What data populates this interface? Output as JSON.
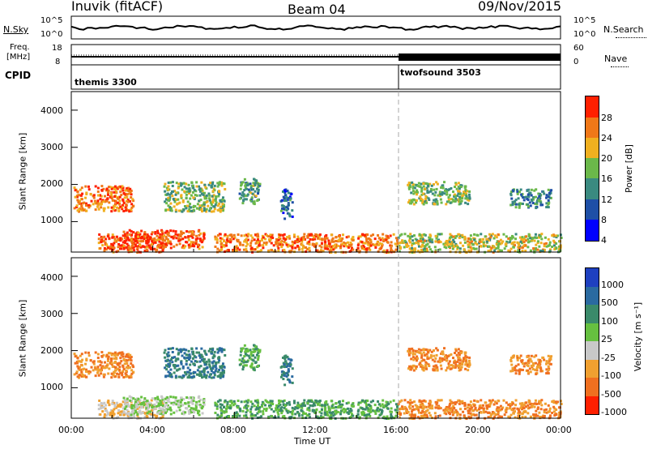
{
  "header": {
    "station": "Inuvik (fitACF)",
    "beam": "Beam 04",
    "date": "09/Nov/2015"
  },
  "noise": {
    "left_label": "N.Sky",
    "right_label": "N.Search",
    "left_ticks": [
      "10^5",
      "10^0"
    ],
    "right_ticks": [
      "10^5",
      "10^0"
    ]
  },
  "freq": {
    "left_label_1": "Freq.",
    "left_label_2": "[MHz]",
    "right_label": "Nave",
    "left_ticks": [
      "18",
      "8"
    ],
    "right_ticks": [
      "60",
      "0"
    ]
  },
  "cpid": {
    "label": "CPID",
    "segments": [
      {
        "name": "themis 3300",
        "start_hour": 0
      },
      {
        "name": "twofsound 3503",
        "start_hour": 16
      }
    ]
  },
  "power_panel": {
    "ylabel": "Slant Range [km]",
    "yticks": [
      "1000",
      "2000",
      "3000",
      "4000"
    ],
    "colorbar_label": "Power [dB]",
    "colorbar_ticks": [
      "4",
      "8",
      "12",
      "16",
      "20",
      "24",
      "28"
    ],
    "colors": [
      "#0000ff",
      "#1e4fa6",
      "#3a8a80",
      "#6bb84a",
      "#f0b020",
      "#f07818",
      "#ff2000"
    ]
  },
  "velocity_panel": {
    "ylabel": "Slant Range [km]",
    "yticks": [
      "1000",
      "2000",
      "3000",
      "4000"
    ],
    "colorbar_label": "Velocity [m s⁻¹]",
    "colorbar_ticks": [
      "1000",
      "500",
      "100",
      "25",
      "-25",
      "-100",
      "-500",
      "-1000"
    ],
    "colors": [
      "#1e40c0",
      "#2a6aa0",
      "#3a8a6a",
      "#66c040",
      "#c8c8c8",
      "#f0a030",
      "#f07020",
      "#ff2000"
    ]
  },
  "xaxis": {
    "label": "Time UT",
    "ticks": [
      "00:00",
      "04:00",
      "08:00",
      "12:00",
      "16:00",
      "20:00",
      "00:00"
    ]
  },
  "chart_data": {
    "type": "heatmap",
    "x_range_hours": [
      0,
      24
    ],
    "y_range_km": [
      180,
      4500
    ],
    "scatter_regions": [
      {
        "t0": 0.1,
        "t1": 3.0,
        "r0": 1300,
        "r1": 2000,
        "power": 26,
        "velocity": -100
      },
      {
        "t0": 1.3,
        "t1": 4.5,
        "r0": 200,
        "r1": 700,
        "power": 28,
        "velocity": -25
      },
      {
        "t0": 2.5,
        "t1": 6.5,
        "r0": 300,
        "r1": 800,
        "power": 28,
        "velocity": 25
      },
      {
        "t0": 4.5,
        "t1": 7.5,
        "r0": 1300,
        "r1": 2100,
        "power": 18,
        "velocity": 500
      },
      {
        "t0": 7.0,
        "t1": 16.0,
        "r0": 200,
        "r1": 700,
        "power": 26,
        "velocity": 100
      },
      {
        "t0": 8.2,
        "t1": 9.2,
        "r0": 1500,
        "r1": 2200,
        "power": 16,
        "velocity": 100
      },
      {
        "t0": 10.2,
        "t1": 10.8,
        "r0": 1100,
        "r1": 1900,
        "power": 12,
        "velocity": 500
      },
      {
        "t0": 16.0,
        "t1": 24.0,
        "r0": 200,
        "r1": 700,
        "power": 20,
        "velocity": -100
      },
      {
        "t0": 16.4,
        "t1": 19.5,
        "r0": 1500,
        "r1": 2100,
        "power": 18,
        "velocity": -100
      },
      {
        "t0": 21.5,
        "t1": 23.5,
        "r0": 1400,
        "r1": 1900,
        "power": 14,
        "velocity": -100
      }
    ]
  }
}
